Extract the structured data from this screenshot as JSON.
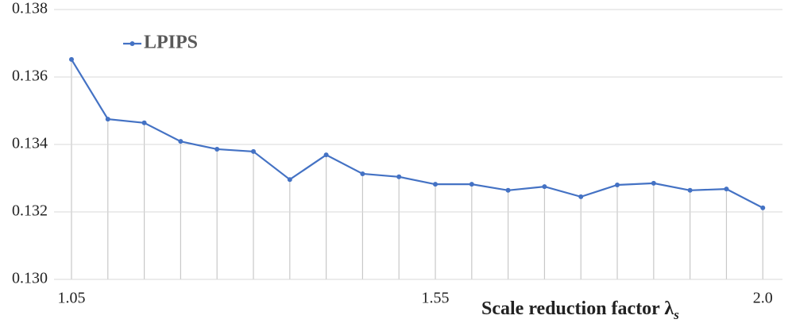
{
  "chart_data": {
    "type": "line",
    "xlabel": "Scale reduction factor λ",
    "xlabel_subscript": "s",
    "x": [
      1.05,
      1.1,
      1.15,
      1.2,
      1.25,
      1.3,
      1.35,
      1.4,
      1.45,
      1.5,
      1.55,
      1.6,
      1.65,
      1.7,
      1.75,
      1.8,
      1.85,
      1.9,
      1.95,
      2.0
    ],
    "series": [
      {
        "name": "LPIPS",
        "color": "#4472c4",
        "values": [
          0.13652,
          0.13475,
          0.13464,
          0.13409,
          0.13386,
          0.13379,
          0.13296,
          0.13369,
          0.13313,
          0.13304,
          0.13282,
          0.13282,
          0.13264,
          0.13275,
          0.13245,
          0.1328,
          0.13285,
          0.13264,
          0.13268,
          0.13212
        ]
      }
    ],
    "xlim": [
      1.026,
      2.027
    ],
    "xticks": [
      1.05,
      1.55,
      {
        "value": 2,
        "label": "2.0"
      }
    ],
    "ylim": [
      0.13,
      0.138
    ],
    "yticks": [
      {
        "value": 0.13,
        "label": "0.130"
      },
      0.132,
      0.134,
      0.136,
      0.138
    ],
    "grid": true,
    "legend": "top-left"
  }
}
